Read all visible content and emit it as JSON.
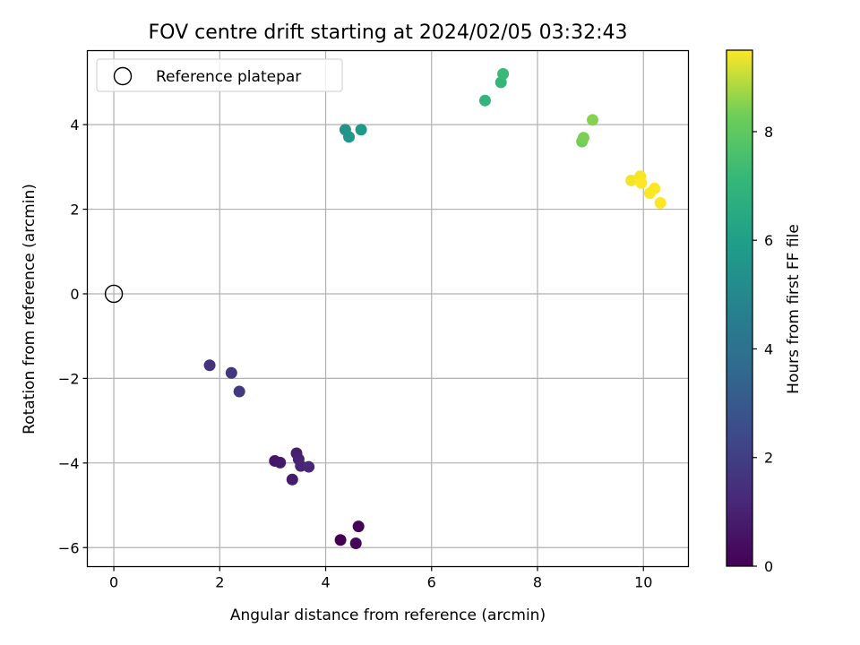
{
  "chart_data": {
    "type": "scatter",
    "title": "FOV centre drift starting at 2024/02/05 03:32:43",
    "xlabel": "Angular distance from reference (arcmin)",
    "ylabel": "Rotation from reference (arcmin)",
    "xlim": [
      -0.5,
      10.85
    ],
    "ylim": [
      -6.45,
      5.75
    ],
    "xticks": [
      0,
      2,
      4,
      6,
      8,
      10
    ],
    "yticks": [
      -6,
      -4,
      -2,
      0,
      2,
      4
    ],
    "grid": true,
    "colormap": "viridis",
    "colorbar": {
      "label": "Hours from first FF file",
      "range": [
        0,
        9.5
      ],
      "ticks": [
        0,
        2,
        4,
        6,
        8
      ]
    },
    "legend": {
      "placement": "top-left",
      "entries": [
        "Reference platepar"
      ]
    },
    "reference_point": {
      "x": 0,
      "y": 0,
      "edge_color": "#000000"
    },
    "points": [
      {
        "x": 4.28,
        "y": -5.82,
        "hours": 0.0
      },
      {
        "x": 4.62,
        "y": -5.5,
        "hours": 0.1
      },
      {
        "x": 4.57,
        "y": -5.9,
        "hours": 0.2
      },
      {
        "x": 3.04,
        "y": -3.95,
        "hours": 0.6
      },
      {
        "x": 3.14,
        "y": -3.99,
        "hours": 0.7
      },
      {
        "x": 3.37,
        "y": -4.39,
        "hours": 0.8
      },
      {
        "x": 3.45,
        "y": -3.77,
        "hours": 0.9
      },
      {
        "x": 3.49,
        "y": -3.91,
        "hours": 1.0
      },
      {
        "x": 3.53,
        "y": -4.07,
        "hours": 1.1
      },
      {
        "x": 3.68,
        "y": -4.09,
        "hours": 1.2
      },
      {
        "x": 1.81,
        "y": -1.69,
        "hours": 1.6
      },
      {
        "x": 2.22,
        "y": -1.87,
        "hours": 1.7
      },
      {
        "x": 2.37,
        "y": -2.31,
        "hours": 1.8
      },
      {
        "x": 4.37,
        "y": 3.88,
        "hours": 5.5
      },
      {
        "x": 4.44,
        "y": 3.71,
        "hours": 5.6
      },
      {
        "x": 4.67,
        "y": 3.88,
        "hours": 5.7
      },
      {
        "x": 7.01,
        "y": 4.57,
        "hours": 7.0
      },
      {
        "x": 7.31,
        "y": 5.0,
        "hours": 7.1
      },
      {
        "x": 7.35,
        "y": 5.2,
        "hours": 7.2
      },
      {
        "x": 8.84,
        "y": 3.6,
        "hours": 8.3
      },
      {
        "x": 8.87,
        "y": 3.69,
        "hours": 8.4
      },
      {
        "x": 9.04,
        "y": 4.11,
        "hours": 8.5
      },
      {
        "x": 9.77,
        "y": 2.68,
        "hours": 9.4
      },
      {
        "x": 9.94,
        "y": 2.78,
        "hours": 9.45
      },
      {
        "x": 9.96,
        "y": 2.62,
        "hours": 9.5
      },
      {
        "x": 10.12,
        "y": 2.38,
        "hours": 9.5
      },
      {
        "x": 10.21,
        "y": 2.49,
        "hours": 9.5
      },
      {
        "x": 10.32,
        "y": 2.15,
        "hours": 9.5
      }
    ]
  }
}
